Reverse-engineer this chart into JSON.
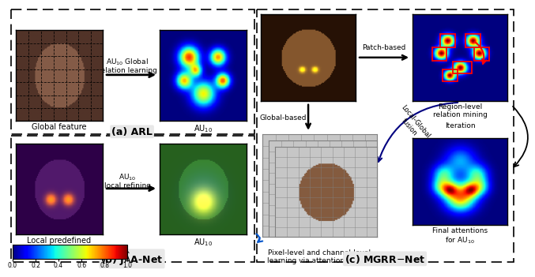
{
  "colorbar_ticks": [
    "0.0",
    "0.2",
    "0.4",
    "0.6",
    "0.8",
    "1.0"
  ],
  "title_a": "(a) ARL",
  "title_b": "(b) J\\u00c2A-Net",
  "title_c": "(c) MGRR\\u2212Net",
  "label_global_feature": "Global feature",
  "label_au10": "AU$_{10}$",
  "label_arrow_a_line1": "AU",
  "label_arrow_a_line2": " Global",
  "label_arrow_a_line3": "relation learning",
  "label_arrow_b_line1": "AU",
  "label_arrow_b_line2": " local refining",
  "label_local_predefined": "Local predefined",
  "label_patch_based": "Patch-based",
  "label_global_based": "Global-based",
  "label_local_global": "Local-Global\nfusion",
  "label_iteration": "Iteration",
  "label_region_level": "Region-level\nrelation mining",
  "label_pixel_channel": "Pixel-level and channel-level\nlearning via attention mining",
  "label_final_attentions": "Final attentions\nfor AU$_{10}$"
}
